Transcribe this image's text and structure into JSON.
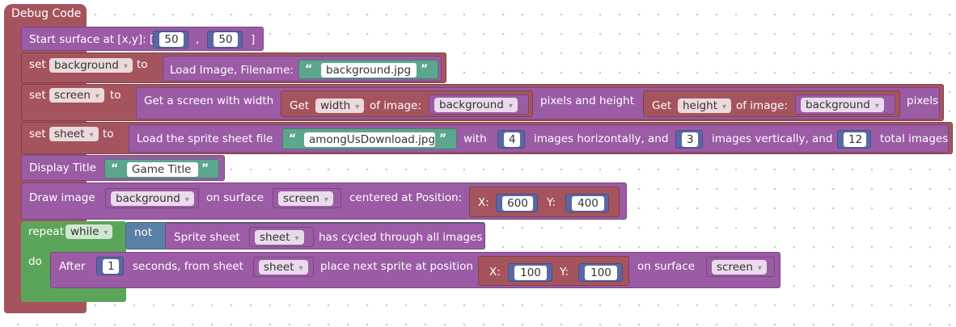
{
  "hat": {
    "label": "Debug Code"
  },
  "start_surface": {
    "label": "Start surface at [x,y]: [",
    "x": "50",
    "comma": ",",
    "y": "50",
    "close": "]"
  },
  "set_background": {
    "set": "set",
    "var": "background",
    "to": "to",
    "load_label": "Load Image, Filename:",
    "filename": "background.jpg"
  },
  "set_screen": {
    "set": "set",
    "var": "screen",
    "to": "to",
    "get_screen_label": "Get a screen with width",
    "get": "Get",
    "width_option": "width",
    "of_image": "of image:",
    "width_image": "background",
    "pixels_and_height": "pixels and height",
    "get2": "Get",
    "height_option": "height",
    "of_image2": "of image:",
    "height_image": "background",
    "pixels": "pixels"
  },
  "set_sheet": {
    "set": "set",
    "var": "sheet",
    "to": "to",
    "load_label": "Load the sprite sheet file",
    "filename": "amongUsDownload.jpg",
    "with": "with",
    "horiz_count": "4",
    "horiz_label": "images horizontally, and",
    "vert_count": "3",
    "vert_label": "images vertically, and",
    "total_count": "12",
    "total_label": "total images"
  },
  "display_title": {
    "label": "Display Title",
    "title": "Game Title"
  },
  "draw_image": {
    "label": "Draw image",
    "image": "background",
    "on_surface": "on surface",
    "surface": "screen",
    "centered": "centered at Position:",
    "x_label": "X:",
    "x": "600",
    "y_label": "Y:",
    "y": "400"
  },
  "repeat": {
    "repeat": "repeat",
    "mode": "while",
    "not": "not",
    "sheet_label": "Sprite sheet",
    "sheet": "sheet",
    "cycled": "has cycled through all images",
    "do": "do"
  },
  "after": {
    "after": "After",
    "seconds": "1",
    "seconds_label": "seconds, from sheet",
    "sheet": "sheet",
    "place_label": "place next sprite at position",
    "x_label": "X:",
    "x": "100",
    "y_label": "Y:",
    "y": "100",
    "on_surface": "on surface",
    "surface": "screen"
  },
  "colors": {
    "procedure": "#a5545e",
    "purple": "#9b5ba5",
    "control": "#5ba55b",
    "text": "#5ca68d",
    "number": "#5b67a5"
  }
}
